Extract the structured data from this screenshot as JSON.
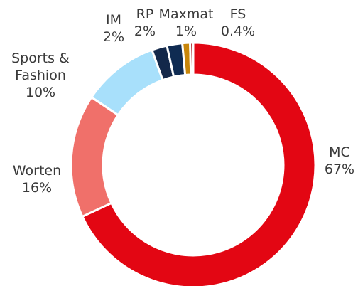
{
  "chart_data": {
    "type": "donut",
    "categories": [
      "MC",
      "Worten",
      "Sports & Fashion",
      "IM",
      "RP",
      "Maxmat",
      "FS"
    ],
    "values": [
      67,
      16,
      10,
      2,
      2,
      1,
      0.4
    ],
    "value_labels": [
      "67%",
      "16%",
      "10%",
      "2%",
      "2%",
      "1%",
      "0.4%"
    ],
    "colors": [
      "#e30613",
      "#f0706a",
      "#a8e0fb",
      "#13284a",
      "#0f2b52",
      "#c8860a",
      "#a3141b"
    ]
  }
}
